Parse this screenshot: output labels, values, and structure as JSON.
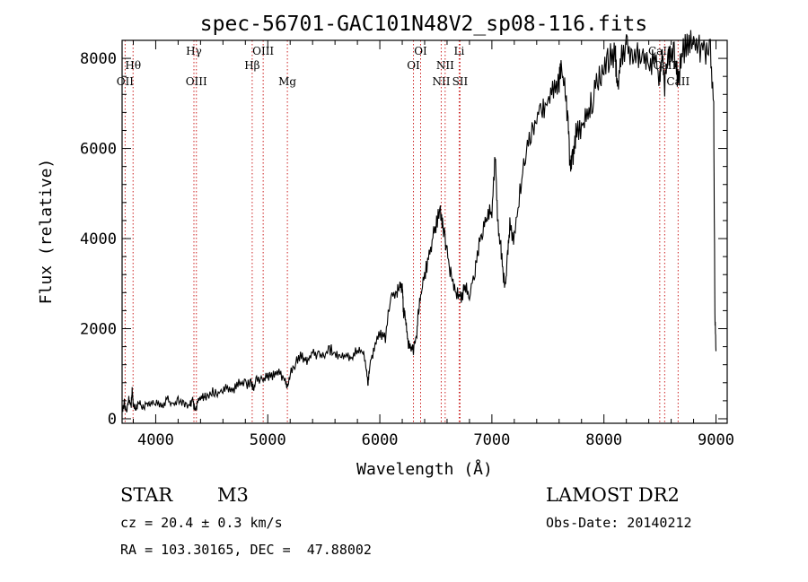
{
  "chart_data": {
    "type": "line",
    "title": "spec-56701-GAC101N48V2_sp08-116.fits",
    "xlabel": "Wavelength (Å)",
    "ylabel": "Flux (relative)",
    "xlim": [
      3700,
      9100
    ],
    "ylim": [
      -100,
      8400
    ],
    "x_ticks": [
      4000,
      5000,
      6000,
      7000,
      8000,
      9000
    ],
    "x_tick_labels": [
      "4000",
      "5000",
      "6000",
      "7000",
      "8000",
      "9000"
    ],
    "y_ticks": [
      0,
      2000,
      4000,
      6000,
      8000
    ],
    "y_tick_labels": [
      "0",
      "2000",
      "4000",
      "6000",
      "8000"
    ],
    "grid": false,
    "series": [
      {
        "color": "#000000",
        "points": [
          [
            3700,
            200
          ],
          [
            3720,
            350
          ],
          [
            3740,
            150
          ],
          [
            3760,
            450
          ],
          [
            3780,
            250
          ],
          [
            3790,
            650
          ],
          [
            3800,
            300
          ],
          [
            3820,
            200
          ],
          [
            3850,
            400
          ],
          [
            3880,
            250
          ],
          [
            3920,
            350
          ],
          [
            3950,
            300
          ],
          [
            4000,
            380
          ],
          [
            4050,
            250
          ],
          [
            4100,
            450
          ],
          [
            4150,
            300
          ],
          [
            4200,
            400
          ],
          [
            4250,
            350
          ],
          [
            4300,
            250
          ],
          [
            4330,
            450
          ],
          [
            4350,
            150
          ],
          [
            4380,
            400
          ],
          [
            4420,
            500
          ],
          [
            4450,
            470
          ],
          [
            4500,
            600
          ],
          [
            4550,
            560
          ],
          [
            4600,
            620
          ],
          [
            4650,
            700
          ],
          [
            4700,
            660
          ],
          [
            4750,
            800
          ],
          [
            4800,
            760
          ],
          [
            4850,
            800
          ],
          [
            4870,
            650
          ],
          [
            4900,
            900
          ],
          [
            4950,
            860
          ],
          [
            5000,
            950
          ],
          [
            5050,
            950
          ],
          [
            5100,
            1000
          ],
          [
            5150,
            900
          ],
          [
            5170,
            700
          ],
          [
            5200,
            1000
          ],
          [
            5250,
            1250
          ],
          [
            5300,
            1400
          ],
          [
            5350,
            1300
          ],
          [
            5400,
            1500
          ],
          [
            5450,
            1400
          ],
          [
            5500,
            1350
          ],
          [
            5550,
            1550
          ],
          [
            5600,
            1450
          ],
          [
            5650,
            1350
          ],
          [
            5700,
            1400
          ],
          [
            5750,
            1350
          ],
          [
            5800,
            1550
          ],
          [
            5850,
            1500
          ],
          [
            5880,
            1150
          ],
          [
            5895,
            750
          ],
          [
            5910,
            1200
          ],
          [
            5950,
            1600
          ],
          [
            6000,
            1900
          ],
          [
            6050,
            1800
          ],
          [
            6100,
            2700
          ],
          [
            6150,
            2800
          ],
          [
            6180,
            2900
          ],
          [
            6200,
            3000
          ],
          [
            6210,
            2400
          ],
          [
            6230,
            2200
          ],
          [
            6250,
            1700
          ],
          [
            6280,
            1600
          ],
          [
            6300,
            1500
          ],
          [
            6330,
            1900
          ],
          [
            6350,
            2500
          ],
          [
            6380,
            3000
          ],
          [
            6420,
            3400
          ],
          [
            6460,
            3900
          ],
          [
            6500,
            4300
          ],
          [
            6540,
            4600
          ],
          [
            6563,
            4300
          ],
          [
            6600,
            3700
          ],
          [
            6640,
            3100
          ],
          [
            6680,
            2800
          ],
          [
            6720,
            2700
          ],
          [
            6760,
            2900
          ],
          [
            6800,
            2800
          ],
          [
            6850,
            3300
          ],
          [
            6880,
            3800
          ],
          [
            6920,
            4200
          ],
          [
            6960,
            4500
          ],
          [
            7000,
            4600
          ],
          [
            7030,
            5900
          ],
          [
            7050,
            4400
          ],
          [
            7080,
            3800
          ],
          [
            7100,
            3200
          ],
          [
            7120,
            2900
          ],
          [
            7140,
            3600
          ],
          [
            7160,
            4300
          ],
          [
            7200,
            4000
          ],
          [
            7250,
            5000
          ],
          [
            7300,
            5900
          ],
          [
            7350,
            6400
          ],
          [
            7400,
            6700
          ],
          [
            7450,
            6900
          ],
          [
            7500,
            7100
          ],
          [
            7550,
            7400
          ],
          [
            7600,
            7500
          ],
          [
            7620,
            7700
          ],
          [
            7650,
            7300
          ],
          [
            7680,
            6600
          ],
          [
            7700,
            5500
          ],
          [
            7720,
            5800
          ],
          [
            7750,
            6300
          ],
          [
            7800,
            6500
          ],
          [
            7850,
            6700
          ],
          [
            7900,
            7100
          ],
          [
            7950,
            7600
          ],
          [
            8000,
            7800
          ],
          [
            8050,
            8000
          ],
          [
            8100,
            8100
          ],
          [
            8120,
            7400
          ],
          [
            8150,
            8000
          ],
          [
            8200,
            8200
          ],
          [
            8250,
            8100
          ],
          [
            8300,
            8100
          ],
          [
            8350,
            7900
          ],
          [
            8400,
            7800
          ],
          [
            8450,
            8100
          ],
          [
            8498,
            7500
          ],
          [
            8520,
            8100
          ],
          [
            8542,
            7400
          ],
          [
            8570,
            8100
          ],
          [
            8600,
            8200
          ],
          [
            8640,
            8000
          ],
          [
            8662,
            7500
          ],
          [
            8700,
            8100
          ],
          [
            8750,
            8400
          ],
          [
            8800,
            8300
          ],
          [
            8850,
            8250
          ],
          [
            8900,
            8200
          ],
          [
            8950,
            8150
          ],
          [
            8980,
            6800
          ],
          [
            8990,
            2300
          ],
          [
            9000,
            1500
          ]
        ]
      }
    ],
    "line_markers": [
      {
        "label": "OII",
        "wavelength": 3727,
        "row": 3
      },
      {
        "label": "Hθ",
        "wavelength": 3798,
        "row": 2
      },
      {
        "label": "Hγ",
        "wavelength": 4341,
        "row": 1
      },
      {
        "label": "OIII",
        "wavelength": 4363,
        "row": 3
      },
      {
        "label": "Hβ",
        "wavelength": 4861,
        "row": 2
      },
      {
        "label": "OIII",
        "wavelength": 4959,
        "row": 1
      },
      {
        "label": "Mg",
        "wavelength": 5175,
        "row": 3
      },
      {
        "label": "OI",
        "wavelength": 6300,
        "row": 2
      },
      {
        "label": "OI",
        "wavelength": 6364,
        "row": 1
      },
      {
        "label": "NII",
        "wavelength": 6548,
        "row": 3
      },
      {
        "label": "NII",
        "wavelength": 6583,
        "row": 2
      },
      {
        "label": "Li",
        "wavelength": 6708,
        "row": 1
      },
      {
        "label": "SII",
        "wavelength": 6716,
        "row": 3
      },
      {
        "label": "CaII",
        "wavelength": 8498,
        "row": 1
      },
      {
        "label": "CaII",
        "wavelength": 8542,
        "row": 2
      },
      {
        "label": "CaII",
        "wavelength": 8662,
        "row": 3
      }
    ],
    "marker_color": "#cc2222"
  },
  "info": {
    "object_class": "STAR",
    "subclass": "M3",
    "survey": "LAMOST DR2",
    "cz": "cz = 20.4 ± 0.3 km/s",
    "obs_date": "Obs-Date: 20140212",
    "coords": "RA = 103.30165, DEC =  47.88002"
  }
}
